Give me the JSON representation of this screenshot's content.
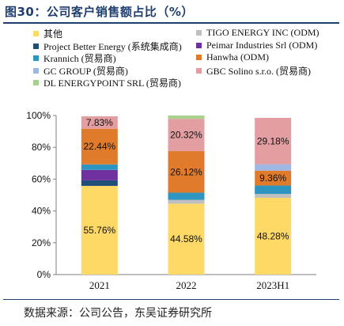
{
  "figure": {
    "title": "图30：公司客户销售额占比（%）",
    "source": "数据来源：公司公告，东吴证券研究所"
  },
  "chart_data": {
    "type": "bar",
    "stacked": true,
    "categories": [
      "2021",
      "2022",
      "2023H1"
    ],
    "ylim": [
      0,
      100
    ],
    "yticks": [
      "0%",
      "20%",
      "40%",
      "60%",
      "80%",
      "100%"
    ],
    "grid": false,
    "legend_position": "top",
    "series": [
      {
        "name": "其他",
        "color": "#ffd966",
        "values": [
          55.76,
          44.58,
          48.28
        ]
      },
      {
        "name": "TIGO ENERGY INC (ODM)",
        "color": "#bfbfbf",
        "values": [
          0,
          2.4,
          2.4
        ]
      },
      {
        "name": "Project Better Energy (系统集成商)",
        "color": "#1f4e79",
        "values": [
          3.5,
          0,
          0
        ]
      },
      {
        "name": "Peimar Industries Srl (ODM)",
        "color": "#7030a0",
        "values": [
          6.5,
          0,
          0
        ]
      },
      {
        "name": "Krannich (贸易商)",
        "color": "#2e95c0",
        "values": [
          3.5,
          4.5,
          5.3
        ]
      },
      {
        "name": "Hanwha (ODM)",
        "color": "#e07b2c",
        "values": [
          22.44,
          26.12,
          9.36
        ]
      },
      {
        "name": "GC GROUP (贸易商)",
        "color": "#9fb7e3",
        "values": [
          0,
          0,
          4.0
        ]
      },
      {
        "name": "GBC Solino s.r.o. (贸易商)",
        "color": "#e39ea2",
        "values": [
          7.83,
          20.32,
          29.18
        ]
      },
      {
        "name": "DL ENERGYPOINT SRL (贸易商)",
        "color": "#a9d18e",
        "values": [
          0,
          2.1,
          0.0
        ]
      }
    ],
    "data_labels": [
      {
        "category": "2021",
        "series": "其他",
        "text": "55.76%"
      },
      {
        "category": "2021",
        "series": "Hanwha (ODM)",
        "text": "22.44%"
      },
      {
        "category": "2021",
        "series": "GBC Solino s.r.o. (贸易商)",
        "text": "7.83%"
      },
      {
        "category": "2022",
        "series": "其他",
        "text": "44.58%"
      },
      {
        "category": "2022",
        "series": "Hanwha (ODM)",
        "text": "26.12%"
      },
      {
        "category": "2022",
        "series": "GBC Solino s.r.o. (贸易商)",
        "text": "20.32%"
      },
      {
        "category": "2023H1",
        "series": "其他",
        "text": "48.28%"
      },
      {
        "category": "2023H1",
        "series": "Hanwha (ODM)",
        "text": "9.36%"
      },
      {
        "category": "2023H1",
        "series": "GBC Solino s.r.o. (贸易商)",
        "text": "29.18%"
      }
    ]
  }
}
